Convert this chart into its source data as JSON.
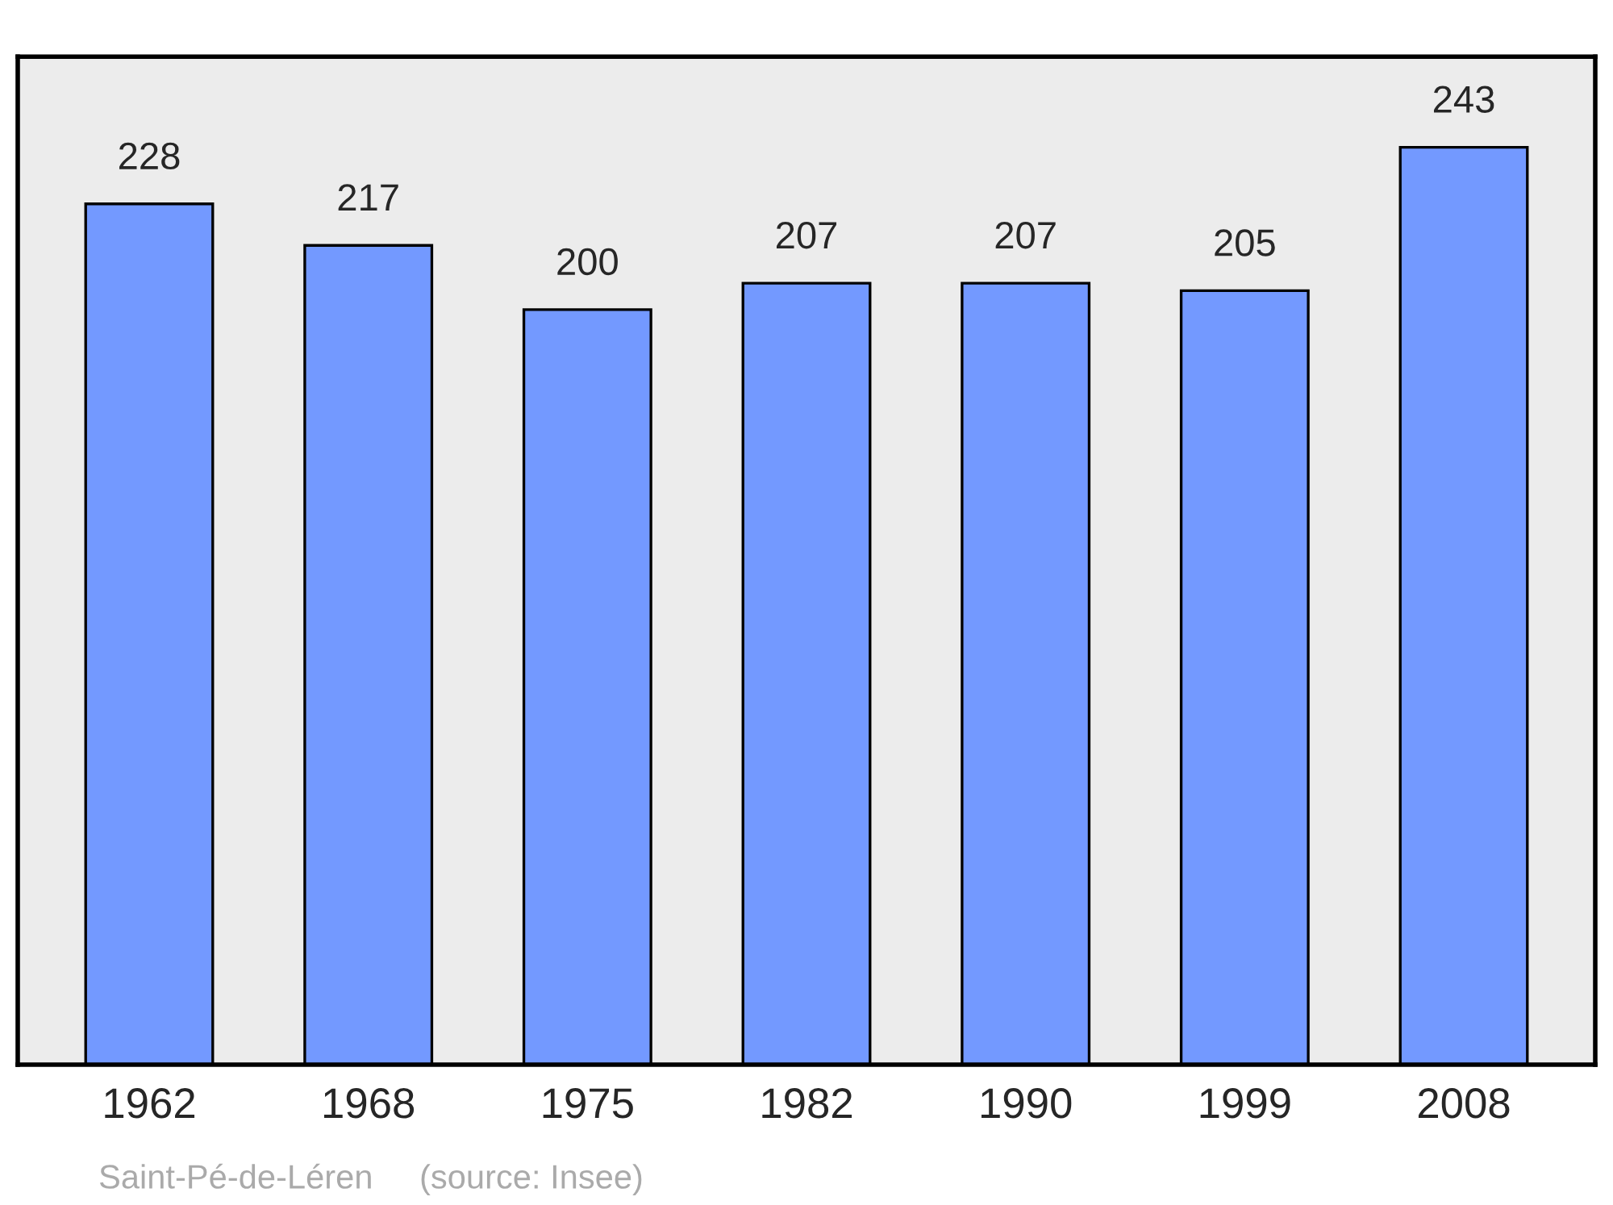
{
  "chart_data": {
    "type": "bar",
    "categories": [
      "1962",
      "1968",
      "1975",
      "1982",
      "1990",
      "1999",
      "2008"
    ],
    "values": [
      228,
      217,
      200,
      207,
      207,
      205,
      243
    ],
    "color": "#7399ff",
    "ylim": [
      0,
      267
    ],
    "data_labels": true,
    "grid": false,
    "legend": false,
    "tick_labels": "x",
    "annotations": [
      "Saint-Pé-de-Léren",
      "(source: Insee)"
    ]
  }
}
